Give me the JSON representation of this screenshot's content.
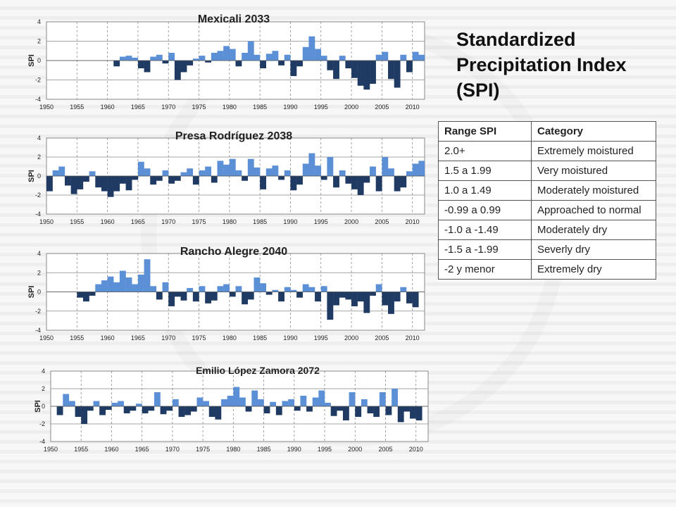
{
  "heading": "Standardized Precipitation Index (SPI)",
  "colors": {
    "positive": "#5b8fd6",
    "negative": "#1f3a63",
    "grid": "#888888"
  },
  "table": {
    "header": [
      "Range SPI",
      "Category"
    ],
    "rows": [
      [
        "2.0+",
        "Extremely moistured"
      ],
      [
        "1.5 a 1.99",
        "Very moistured"
      ],
      [
        "1.0 a 1.49",
        "Moderately moistured"
      ],
      [
        "-0.99 a 0.99",
        "Approached to normal"
      ],
      [
        "-1.0 a -1.49",
        "Moderately dry"
      ],
      [
        "-1.5 a -1.99",
        "Severly dry"
      ],
      [
        "-2 y menor",
        "Extremely dry"
      ]
    ]
  },
  "chart_data": [
    {
      "type": "bar",
      "title": "Mexicali 2033",
      "ylabel": "SPI",
      "xlim": [
        1950,
        2012
      ],
      "ylim": [
        -4,
        4
      ],
      "xticks": [
        "1950",
        "1955",
        "1960",
        "1965",
        "1970",
        "1975",
        "1980",
        "1985",
        "1990",
        "1995",
        "2000",
        "2005",
        "2010"
      ],
      "yticks": [
        "4",
        "2",
        "0",
        "-2",
        "-4"
      ],
      "series": [
        {
          "x": [
            1961,
            1962,
            1963,
            1964,
            1965,
            1966,
            1967,
            1968,
            1969,
            1970,
            1971,
            1972,
            1973,
            1974,
            1975,
            1976,
            1977,
            1978,
            1979,
            1980,
            1981,
            1982,
            1983,
            1984,
            1985,
            1986,
            1987,
            1988,
            1989,
            1990,
            1991,
            1992,
            1993,
            1994,
            1995,
            1996,
            1997,
            1998,
            1999,
            2000,
            2001,
            2002,
            2003,
            2004,
            2005,
            2006,
            2007,
            2008,
            2009,
            2010,
            2011
          ],
          "values": [
            -0.6,
            0.4,
            0.5,
            0.3,
            -0.8,
            -1.2,
            0.4,
            0.6,
            -0.3,
            0.8,
            -2.0,
            -1.2,
            -0.5,
            0.2,
            0.5,
            -0.2,
            0.8,
            1.0,
            1.5,
            1.2,
            -0.6,
            0.8,
            2.0,
            0.6,
            -0.8,
            0.7,
            1.0,
            -0.5,
            0.6,
            -1.6,
            -0.6,
            1.4,
            2.5,
            1.2,
            0.5,
            -1.0,
            -1.9,
            0.5,
            -0.8,
            -1.8,
            -2.6,
            -3.0,
            -2.4,
            0.6,
            0.9,
            -1.9,
            -2.8,
            0.6,
            -1.2,
            0.9,
            0.6
          ]
        }
      ]
    },
    {
      "type": "bar",
      "title": "Presa Rodríguez 2038",
      "ylabel": "SPI",
      "xlim": [
        1950,
        2012
      ],
      "ylim": [
        -4,
        4
      ],
      "xticks": [
        "1950",
        "1955",
        "1960",
        "1965",
        "1970",
        "1975",
        "1980",
        "1985",
        "1990",
        "1995",
        "2000",
        "2005",
        "2010"
      ],
      "yticks": [
        "4",
        "2",
        "0",
        "-2",
        "-4"
      ],
      "series": [
        {
          "x": [
            1950,
            1951,
            1952,
            1953,
            1954,
            1955,
            1956,
            1957,
            1958,
            1959,
            1960,
            1961,
            1962,
            1963,
            1964,
            1965,
            1966,
            1967,
            1968,
            1969,
            1970,
            1971,
            1972,
            1973,
            1974,
            1975,
            1976,
            1977,
            1978,
            1979,
            1980,
            1981,
            1982,
            1983,
            1984,
            1985,
            1986,
            1987,
            1988,
            1989,
            1990,
            1991,
            1992,
            1993,
            1994,
            1995,
            1996,
            1997,
            1998,
            1999,
            2000,
            2001,
            2002,
            2003,
            2004,
            2005,
            2006,
            2007,
            2008,
            2009,
            2010,
            2011
          ],
          "values": [
            -1.6,
            0.6,
            1.0,
            -1.0,
            -1.9,
            -1.4,
            -0.6,
            0.5,
            -1.2,
            -1.6,
            -2.2,
            -1.6,
            -0.8,
            -1.5,
            -0.4,
            1.5,
            0.8,
            -0.9,
            -0.5,
            0.6,
            -0.8,
            -0.5,
            0.4,
            0.8,
            -0.9,
            0.6,
            1.0,
            -0.7,
            1.6,
            1.2,
            1.8,
            0.6,
            -0.5,
            1.8,
            0.9,
            -1.4,
            0.8,
            1.1,
            -0.4,
            0.6,
            -1.5,
            -0.9,
            1.3,
            2.4,
            1.1,
            -0.4,
            2.0,
            -1.2,
            0.6,
            -0.8,
            -1.4,
            -2.0,
            -0.7,
            1.0,
            -1.6,
            2.0,
            0.8,
            -1.6,
            -1.2,
            0.5,
            1.3,
            1.6
          ]
        }
      ]
    },
    {
      "type": "bar",
      "title": "Rancho Alegre 2040",
      "ylabel": "SPI",
      "xlim": [
        1950,
        2012
      ],
      "ylim": [
        -4,
        4
      ],
      "xticks": [
        "1950",
        "1955",
        "1960",
        "1965",
        "1970",
        "1975",
        "1980",
        "1985",
        "1990",
        "1995",
        "2000",
        "2005",
        "2010"
      ],
      "yticks": [
        "4",
        "2",
        "0",
        "-2",
        "-4"
      ],
      "series": [
        {
          "x": [
            1955,
            1956,
            1957,
            1958,
            1959,
            1960,
            1961,
            1962,
            1963,
            1964,
            1965,
            1966,
            1967,
            1968,
            1969,
            1970,
            1971,
            1972,
            1973,
            1974,
            1975,
            1976,
            1977,
            1978,
            1979,
            1980,
            1981,
            1982,
            1983,
            1984,
            1985,
            1986,
            1987,
            1988,
            1989,
            1990,
            1991,
            1992,
            1993,
            1994,
            1995,
            1996,
            1997,
            1998,
            1999,
            2000,
            2001,
            2002,
            2003,
            2004,
            2005,
            2006,
            2007,
            2008,
            2009,
            2010
          ],
          "values": [
            -0.6,
            -1.0,
            -0.4,
            0.8,
            1.2,
            1.6,
            1.0,
            2.2,
            1.5,
            0.8,
            1.8,
            3.4,
            0.6,
            -0.8,
            1.0,
            -1.5,
            -0.5,
            -0.9,
            0.4,
            -1.0,
            0.6,
            -1.2,
            -0.9,
            0.6,
            0.8,
            -0.5,
            0.6,
            -1.3,
            -0.8,
            1.5,
            0.9,
            -0.3,
            0.2,
            -1.0,
            0.5,
            0.2,
            -0.6,
            0.8,
            0.5,
            -1.0,
            0.6,
            -2.9,
            -1.4,
            -0.6,
            -0.8,
            -1.5,
            -1.0,
            -2.2,
            -0.4,
            0.8,
            -1.4,
            -2.3,
            -1.0,
            0.5,
            -1.2,
            -1.6
          ]
        }
      ]
    },
    {
      "type": "bar",
      "title": "Emilio López Zamora 2072",
      "ylabel": "SPI",
      "xlim": [
        1950,
        2012
      ],
      "ylim": [
        -4,
        4
      ],
      "xticks": [
        "1950",
        "1955",
        "1960",
        "1965",
        "1970",
        "1975",
        "1980",
        "1985",
        "1990",
        "1995",
        "2000",
        "2005",
        "2010"
      ],
      "yticks": [
        "4",
        "2",
        "0",
        "-2",
        "-4"
      ],
      "series": [
        {
          "x": [
            1951,
            1952,
            1953,
            1954,
            1955,
            1956,
            1957,
            1958,
            1959,
            1960,
            1961,
            1962,
            1963,
            1964,
            1965,
            1966,
            1967,
            1968,
            1969,
            1970,
            1971,
            1972,
            1973,
            1974,
            1975,
            1976,
            1977,
            1978,
            1979,
            1980,
            1981,
            1982,
            1983,
            1984,
            1985,
            1986,
            1987,
            1988,
            1989,
            1990,
            1991,
            1992,
            1993,
            1994,
            1995,
            1996,
            1997,
            1998,
            1999,
            2000,
            2001,
            2002,
            2003,
            2004,
            2005,
            2006,
            2007,
            2008,
            2009,
            2010
          ],
          "values": [
            -1.0,
            1.4,
            0.6,
            -1.2,
            -2.0,
            -0.5,
            0.6,
            -1.0,
            -0.4,
            0.4,
            0.6,
            -0.8,
            -0.5,
            0.3,
            -0.8,
            -0.5,
            1.6,
            -0.9,
            -0.5,
            0.8,
            -1.2,
            -1.0,
            -0.6,
            1.0,
            0.6,
            -1.2,
            -1.5,
            0.8,
            1.2,
            2.2,
            1.0,
            -0.6,
            1.8,
            0.8,
            -0.8,
            0.5,
            -1.0,
            0.6,
            0.8,
            -0.5,
            1.2,
            -0.6,
            1.0,
            1.8,
            0.4,
            -1.1,
            -0.5,
            -1.6,
            1.6,
            -1.2,
            0.8,
            -0.8,
            -1.2,
            1.6,
            -1.0,
            2.0,
            -1.8,
            -0.6,
            -1.4,
            -1.6
          ]
        }
      ]
    }
  ]
}
